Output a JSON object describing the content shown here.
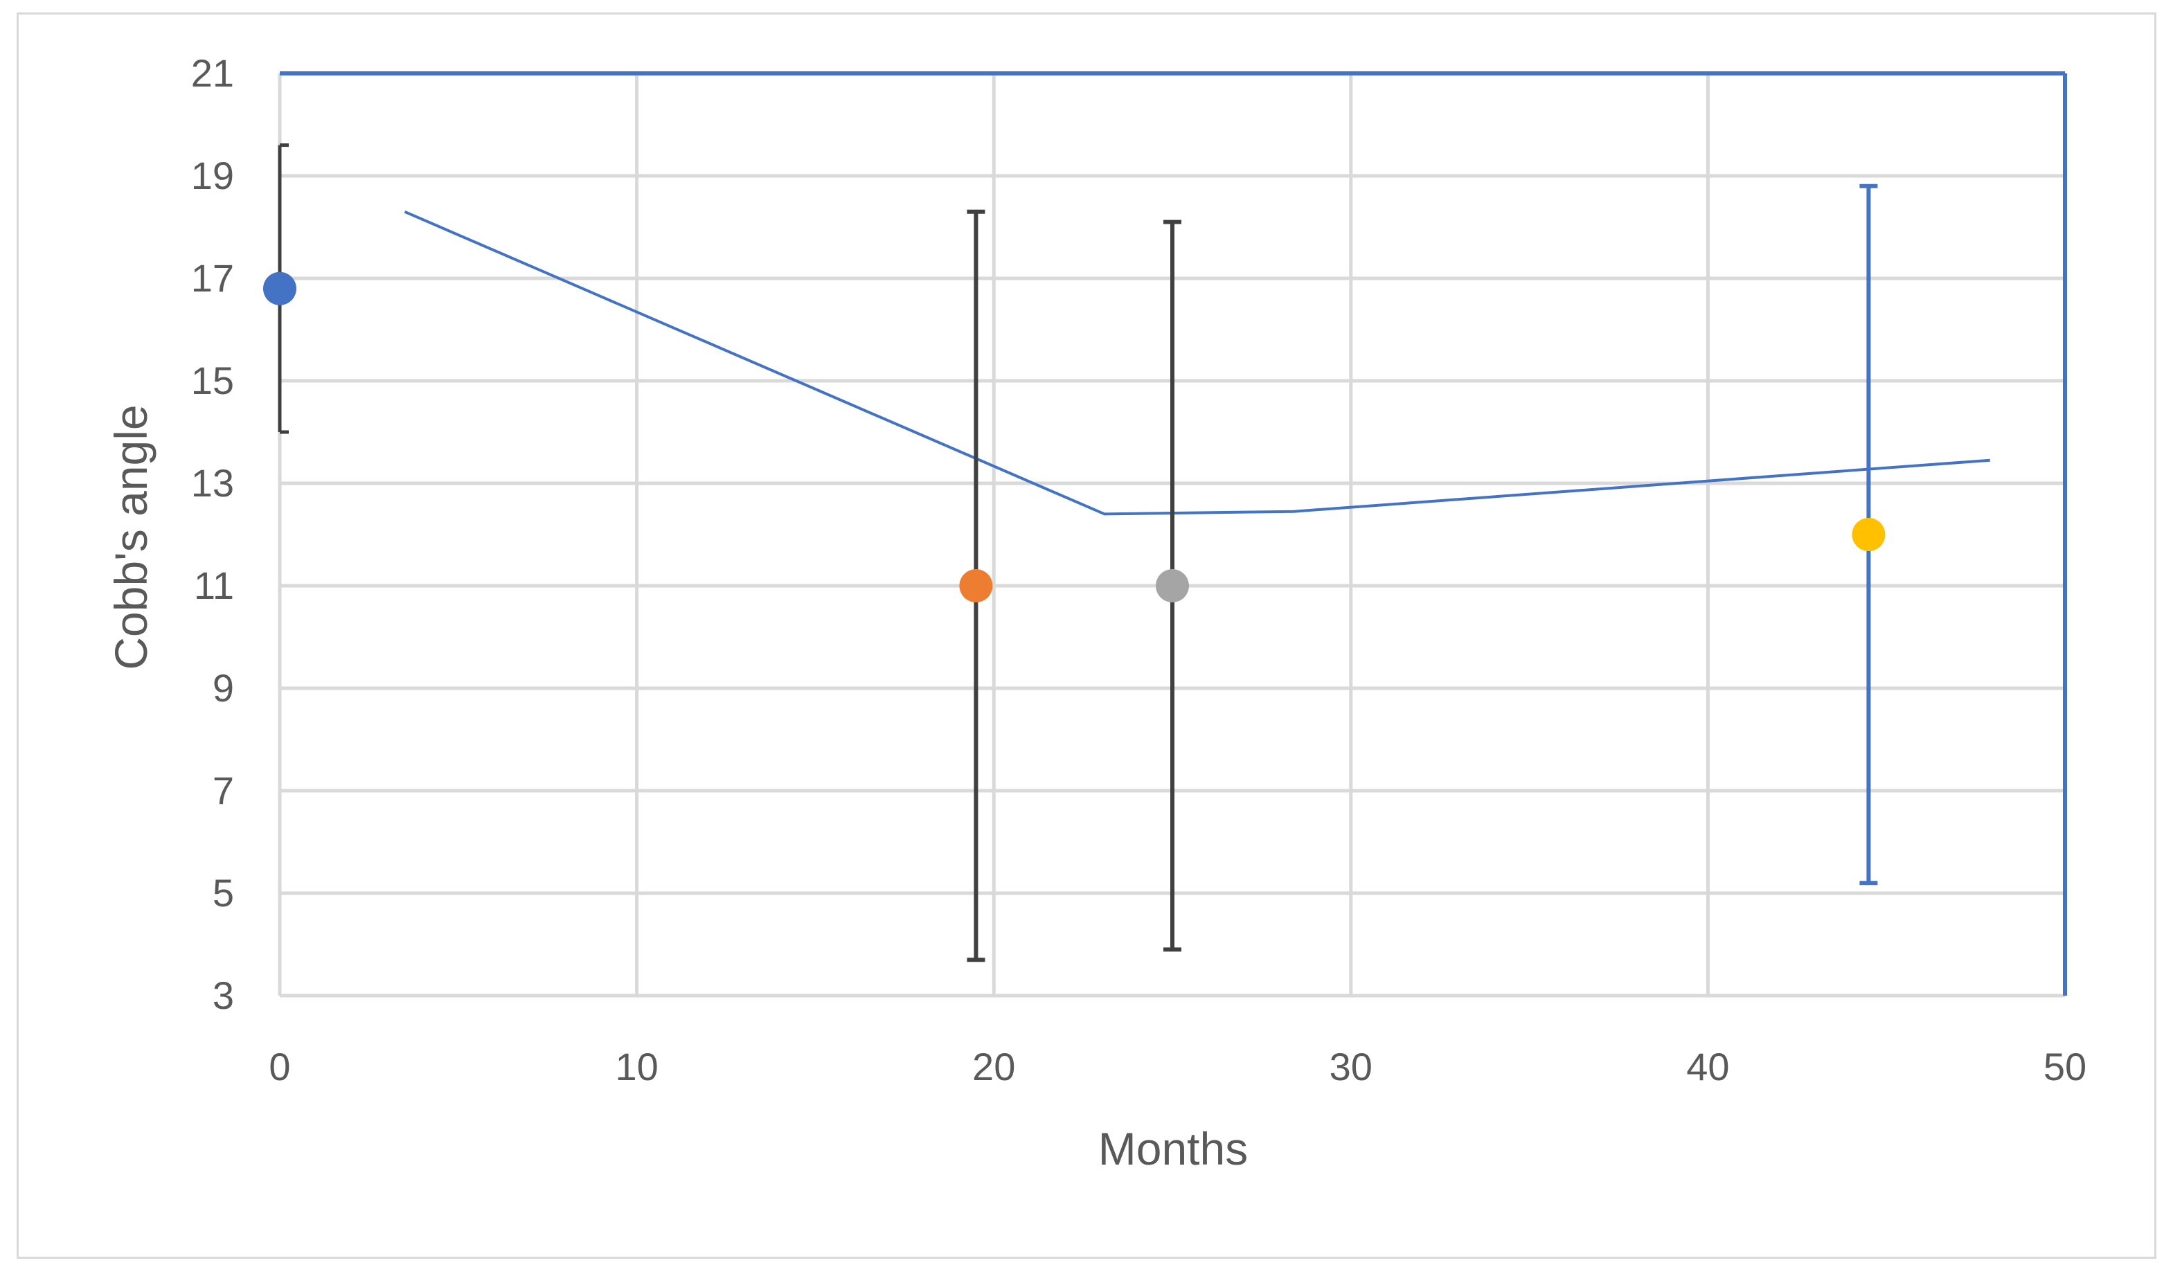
{
  "chart_data": {
    "type": "scatter",
    "title": "",
    "xlabel": "Months",
    "ylabel": "Cobb's angle",
    "xlim": [
      0,
      50
    ],
    "ylim": [
      3,
      21
    ],
    "x_ticks": [
      0,
      10,
      20,
      30,
      40,
      50
    ],
    "y_ticks": [
      3,
      5,
      7,
      9,
      11,
      13,
      15,
      17,
      19,
      21
    ],
    "grid": true,
    "legend": "none",
    "points": [
      {
        "x": 0,
        "y": 16.8,
        "err_low": 14.0,
        "err_high": 19.6,
        "color": "#4472c4",
        "err_color": "#404040"
      },
      {
        "x": 19.5,
        "y": 11.0,
        "err_low": 3.7,
        "err_high": 18.3,
        "color": "#ed7d31",
        "err_color": "#404040"
      },
      {
        "x": 25.0,
        "y": 11.0,
        "err_low": 3.9,
        "err_high": 18.1,
        "color": "#a5a5a5",
        "err_color": "#404040"
      },
      {
        "x": 44.5,
        "y": 12.0,
        "err_low": 5.2,
        "err_high": 18.8,
        "color": "#ffc000",
        "err_color": "#4472c4"
      }
    ],
    "trend_line": {
      "color": "#4472c4",
      "points": [
        {
          "x": 3.5,
          "y": 18.3
        },
        {
          "x": 23.1,
          "y": 12.4
        },
        {
          "x": 28.4,
          "y": 12.45
        },
        {
          "x": 47.9,
          "y": 13.45
        }
      ]
    },
    "colors": {
      "grid": "#d9d9d9",
      "axis_text": "#595959",
      "plot_border": "#4472c4"
    }
  }
}
